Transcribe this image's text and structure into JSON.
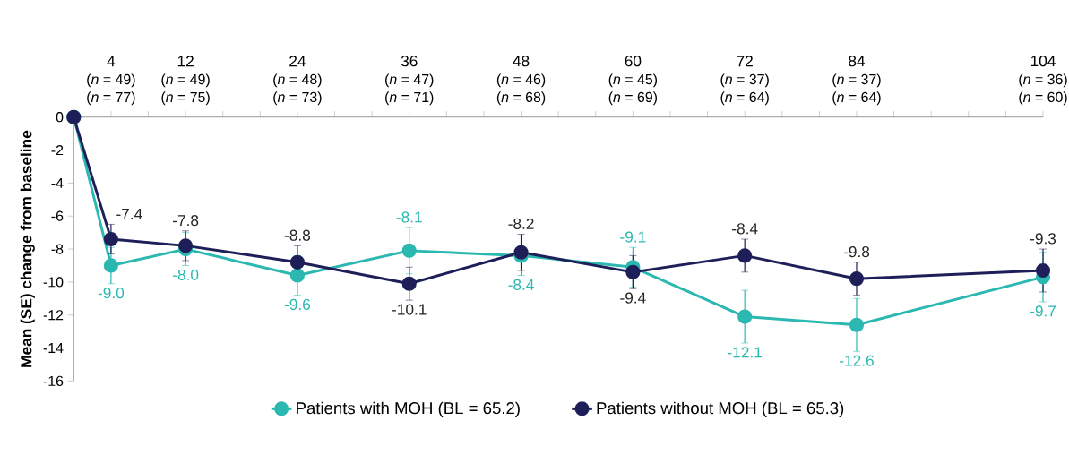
{
  "chart_data": {
    "type": "line",
    "ylabel": "Mean (SE) change from baseline",
    "x": [
      0,
      4,
      12,
      24,
      36,
      48,
      60,
      72,
      84,
      104
    ],
    "xlim": [
      0,
      104
    ],
    "ylim": [
      -16,
      0
    ],
    "xticks": [
      {
        "value": 0,
        "label": null
      },
      4,
      {
        "value": 8,
        "label": null
      },
      12,
      {
        "value": 16,
        "label": null
      },
      {
        "value": 20,
        "label": null
      },
      24,
      {
        "value": 28,
        "label": null
      },
      {
        "value": 32,
        "label": null
      },
      36,
      {
        "value": 40,
        "label": null
      },
      {
        "value": 44,
        "label": null
      },
      48,
      {
        "value": 52,
        "label": null
      },
      {
        "value": 56,
        "label": null
      },
      60,
      {
        "value": 64,
        "label": null
      },
      {
        "value": 68,
        "label": null
      },
      72,
      {
        "value": 76,
        "label": null
      },
      {
        "value": 80,
        "label": null
      },
      84,
      {
        "value": 88,
        "label": null
      },
      {
        "value": 92,
        "label": null
      },
      {
        "value": 96,
        "label": null
      },
      {
        "value": 100,
        "label": null
      },
      104
    ],
    "annotations": [
      "(*n* = 49)",
      "(*n* = 77)",
      "(*n* = 49)",
      "(*n* = 75)",
      "(*n* = 48)",
      "(*n* = 73)",
      "(*n* = 47)",
      "(*n* = 71)",
      "(*n* = 46)",
      "(*n* = 68)",
      "(*n* = 45)",
      "(*n* = 69)",
      "(*n* = 37)",
      "(*n* = 64)",
      "(*n* = 37)",
      "(*n* = 64)",
      "(*n* = 36)",
      "(*n* = 60)"
    ],
    "yticks": [
      0,
      -2,
      -4,
      -6,
      -8,
      -10,
      -12,
      -14,
      -16
    ],
    "grid": false,
    "legend": "bottom",
    "marker": "circle",
    "line_style": "solid",
    "series": [
      {
        "name": "Patients with MOH (BL = 65.2)",
        "color": "#2bb8b0",
        "values": [
          0,
          -9.0,
          -8.0,
          -9.6,
          -8.1,
          -8.4,
          -9.1,
          -12.1,
          -12.6,
          -9.7
        ],
        "errors": [
          null,
          1.1,
          1.0,
          1.2,
          1.4,
          1.2,
          1.2,
          1.6,
          1.6,
          1.5
        ],
        "value_labels": [
          null,
          "-9.0",
          "-8.0",
          "-9.6",
          "-8.1",
          "-8.4",
          "-9.1",
          "-12.1",
          "-12.6",
          "-9.7"
        ]
      },
      {
        "name": "Patients without MOH (BL = 65.3)",
        "color": "#1e1f58",
        "values": [
          0,
          -7.4,
          -7.8,
          -8.8,
          -10.1,
          -8.2,
          -9.4,
          -8.4,
          -9.8,
          -9.3
        ],
        "errors": [
          null,
          0.9,
          0.9,
          1.0,
          1.0,
          1.1,
          1.0,
          1.0,
          1.0,
          1.3
        ],
        "value_labels": [
          null,
          "-7.4",
          "-7.8",
          "-8.8",
          "-10.1",
          "-8.2",
          "-9.4",
          "-8.4",
          "-9.8",
          "-9.3"
        ]
      }
    ]
  }
}
